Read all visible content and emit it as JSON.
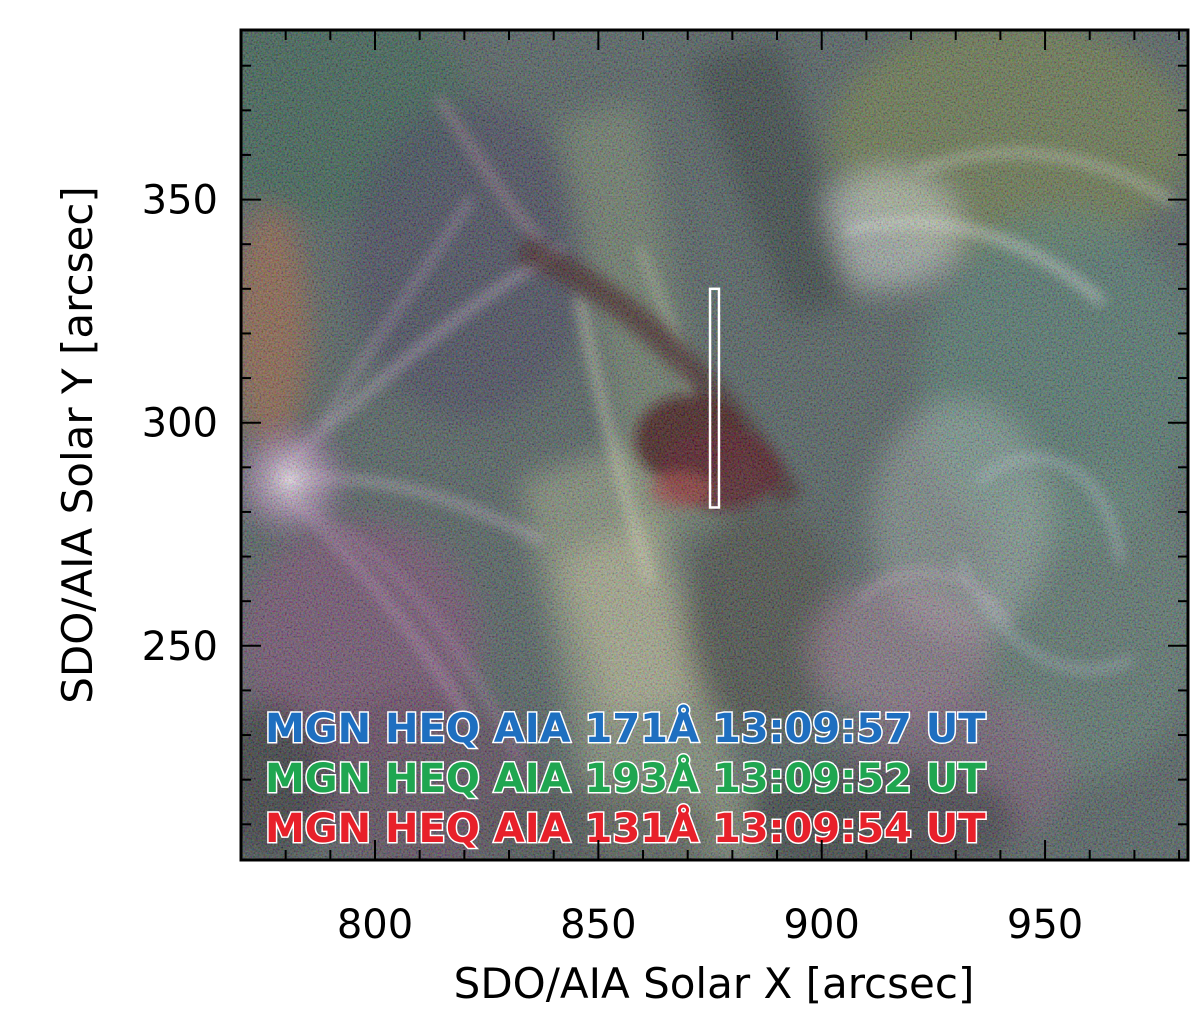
{
  "figure": {
    "x_axis": {
      "label": "SDO/AIA Solar X [arcsec]",
      "range": [
        770,
        982
      ],
      "major_ticks": [
        800,
        850,
        900,
        950
      ],
      "minor_step": 10
    },
    "y_axis": {
      "label": "SDO/AIA Solar Y [arcsec]",
      "range": [
        202,
        388
      ],
      "major_ticks": [
        250,
        300,
        350
      ],
      "minor_step": 10
    },
    "slit": {
      "x_range": [
        875,
        877
      ],
      "y_range": [
        281,
        330
      ],
      "color": "#ffffff"
    },
    "legend": [
      {
        "text": "MGN  HEQ  AIA  171Å    13:09:57  UT",
        "color": "#1e6fc0"
      },
      {
        "text": "MGN  HEQ  AIA  193Å    13:09:52  UT",
        "color": "#1fa650"
      },
      {
        "text": "MGN  HEQ  AIA  131Å    13:09:54  UT",
        "color": "#e8202a"
      }
    ]
  }
}
